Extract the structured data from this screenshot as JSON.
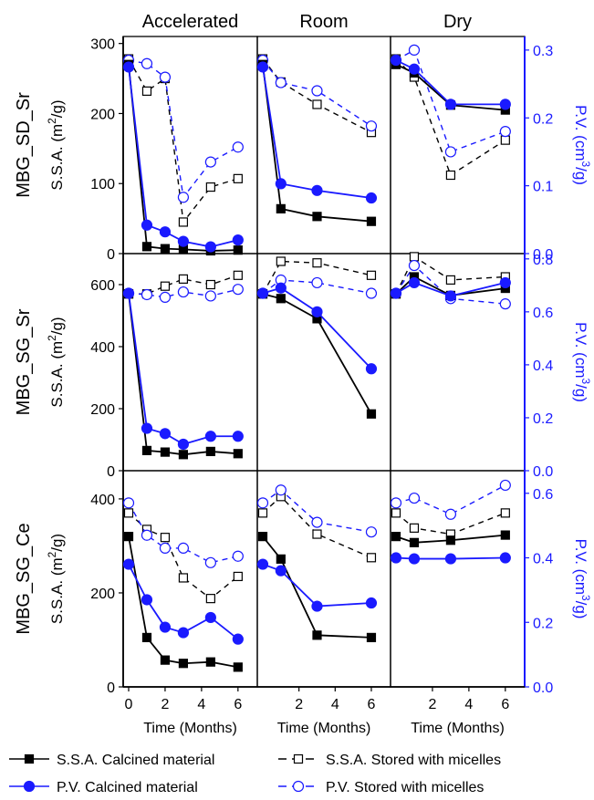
{
  "chart_data": {
    "type": "line",
    "column_titles": [
      "Accelerated",
      "Room",
      "Dry"
    ],
    "row_labels": [
      "MBG_SD_Sr",
      "MBG_SG_Sr",
      "MBG_SG_Ce"
    ],
    "xlabel": "Time (Months)",
    "ylabel_left": "S.S.A. (m²/g)",
    "ylabel_right": "P.V. (cm³/g)",
    "colors": {
      "ssa": "#000000",
      "pv": "#1a1aff"
    },
    "x_ticks": [
      {
        "col": 0,
        "values": [
          0,
          2,
          4,
          6
        ],
        "labels": [
          "0",
          "2",
          "4",
          "6"
        ]
      },
      {
        "col": 1,
        "values": [
          2,
          4,
          6
        ],
        "labels": [
          "2",
          "4",
          "6"
        ]
      },
      {
        "col": 2,
        "values": [
          2,
          4,
          6
        ],
        "labels": [
          "2",
          "4",
          "6"
        ]
      }
    ],
    "xlim": [
      0,
      7
    ],
    "rows": [
      {
        "label": "MBG_SD_Sr",
        "ylim_left": [
          0,
          310
        ],
        "ylim_right": [
          0,
          0.32
        ],
        "left_ticks": [
          0,
          100,
          200,
          300
        ],
        "left_tick_labels": [
          "0",
          "100",
          "200",
          "300"
        ],
        "right_ticks": [
          0.0,
          0.1,
          0.2,
          0.3
        ],
        "right_tick_labels": [
          "0.0",
          "0.1",
          "0.2",
          "0.3"
        ],
        "panels": [
          {
            "ssa_calcined": {
              "x": [
                0,
                1,
                2,
                3,
                4.5,
                6
              ],
              "y": [
                270,
                10,
                7,
                6,
                4,
                5
              ]
            },
            "ssa_stored": {
              "x": [
                0,
                1,
                2,
                3,
                4.5,
                6
              ],
              "y": [
                278,
                232,
                250,
                45,
                95,
                107
              ]
            },
            "pv_calcined": {
              "x": [
                0,
                1,
                2,
                3,
                4.5,
                6
              ],
              "y": [
                0.275,
                0.042,
                0.032,
                0.018,
                0.01,
                0.02
              ]
            },
            "pv_stored": {
              "x": [
                0,
                1,
                2,
                3,
                4.5,
                6
              ],
              "y": [
                0.285,
                0.28,
                0.26,
                0.083,
                0.135,
                0.157
              ]
            }
          },
          {
            "ssa_calcined": {
              "x": [
                0,
                1,
                3,
                6
              ],
              "y": [
                270,
                64,
                53,
                46
              ]
            },
            "ssa_stored": {
              "x": [
                0,
                1,
                3,
                6
              ],
              "y": [
                278,
                245,
                213,
                173
              ]
            },
            "pv_calcined": {
              "x": [
                0,
                1,
                3,
                6
              ],
              "y": [
                0.275,
                0.103,
                0.093,
                0.082
              ]
            },
            "pv_stored": {
              "x": [
                0,
                1,
                3,
                6
              ],
              "y": [
                0.285,
                0.252,
                0.24,
                0.188
              ]
            }
          },
          {
            "ssa_calcined": {
              "x": [
                0,
                1,
                3,
                6
              ],
              "y": [
                270,
                258,
                212,
                205
              ]
            },
            "ssa_stored": {
              "x": [
                0,
                1,
                3,
                6
              ],
              "y": [
                278,
                252,
                112,
                162
              ]
            },
            "pv_calcined": {
              "x": [
                0,
                1,
                3,
                6
              ],
              "y": [
                0.285,
                0.272,
                0.22,
                0.22
              ]
            },
            "pv_stored": {
              "x": [
                0,
                1,
                3,
                6
              ],
              "y": [
                0.285,
                0.3,
                0.15,
                0.18
              ]
            }
          }
        ]
      },
      {
        "label": "MBG_SG_Sr",
        "ylim_left": [
          0,
          700
        ],
        "ylim_right": [
          0,
          0.82
        ],
        "left_ticks": [
          0,
          200,
          400,
          600
        ],
        "left_tick_labels": [
          "0",
          "200",
          "400",
          "600"
        ],
        "right_ticks": [
          0.0,
          0.2,
          0.4,
          0.6,
          0.8
        ],
        "right_tick_labels": [
          "0.0",
          "0.2",
          "0.4",
          "0.6",
          "0.8"
        ],
        "panels": [
          {
            "ssa_calcined": {
              "x": [
                0,
                1,
                2,
                3,
                4.5,
                6
              ],
              "y": [
                570,
                65,
                60,
                52,
                62,
                55
              ]
            },
            "ssa_stored": {
              "x": [
                0,
                1,
                2,
                3,
                4.5,
                6
              ],
              "y": [
                570,
                570,
                595,
                618,
                600,
                630
              ]
            },
            "pv_calcined": {
              "x": [
                0,
                1,
                2,
                3,
                4.5,
                6
              ],
              "y": [
                0.67,
                0.16,
                0.14,
                0.1,
                0.13,
                0.13
              ]
            },
            "pv_stored": {
              "x": [
                0,
                1,
                2,
                3,
                4.5,
                6
              ],
              "y": [
                0.67,
                0.665,
                0.655,
                0.675,
                0.66,
                0.685
              ]
            }
          },
          {
            "ssa_calcined": {
              "x": [
                0,
                1,
                3,
                6
              ],
              "y": [
                570,
                555,
                490,
                183
              ]
            },
            "ssa_stored": {
              "x": [
                0,
                1,
                3,
                6
              ],
              "y": [
                570,
                675,
                670,
                630
              ]
            },
            "pv_calcined": {
              "x": [
                0,
                1,
                3,
                6
              ],
              "y": [
                0.67,
                0.69,
                0.6,
                0.385
              ]
            },
            "pv_stored": {
              "x": [
                0,
                1,
                3,
                6
              ],
              "y": [
                0.67,
                0.72,
                0.71,
                0.67
              ]
            }
          },
          {
            "ssa_calcined": {
              "x": [
                0,
                1,
                3,
                6
              ],
              "y": [
                570,
                625,
                565,
                588
              ]
            },
            "ssa_stored": {
              "x": [
                0,
                1,
                3,
                6
              ],
              "y": [
                570,
                690,
                615,
                625
              ]
            },
            "pv_calcined": {
              "x": [
                0,
                1,
                3,
                6
              ],
              "y": [
                0.67,
                0.71,
                0.66,
                0.71
              ]
            },
            "pv_stored": {
              "x": [
                0,
                1,
                3,
                6
              ],
              "y": [
                0.67,
                0.775,
                0.65,
                0.63
              ]
            }
          }
        ]
      },
      {
        "label": "MBG_SG_Ce",
        "ylim_left": [
          0,
          460
        ],
        "ylim_right": [
          0,
          0.67
        ],
        "left_ticks": [
          0,
          200,
          400
        ],
        "left_tick_labels": [
          "0",
          "200",
          "400"
        ],
        "right_ticks": [
          0.0,
          0.2,
          0.4,
          0.6
        ],
        "right_tick_labels": [
          "0.0",
          "0.2",
          "0.4",
          "0.6"
        ],
        "panels": [
          {
            "ssa_calcined": {
              "x": [
                0,
                1,
                2,
                3,
                4.5,
                6
              ],
              "y": [
                320,
                105,
                57,
                50,
                53,
                42
              ]
            },
            "ssa_stored": {
              "x": [
                0,
                1,
                2,
                3,
                4.5,
                6
              ],
              "y": [
                370,
                335,
                318,
                232,
                188,
                235
              ]
            },
            "pv_calcined": {
              "x": [
                0,
                1,
                2,
                3,
                4.5,
                6
              ],
              "y": [
                0.38,
                0.27,
                0.185,
                0.168,
                0.215,
                0.148
              ]
            },
            "pv_stored": {
              "x": [
                0,
                1,
                2,
                3,
                4.5,
                6
              ],
              "y": [
                0.57,
                0.47,
                0.43,
                0.43,
                0.385,
                0.405
              ]
            }
          },
          {
            "ssa_calcined": {
              "x": [
                0,
                1,
                3,
                6
              ],
              "y": [
                320,
                272,
                110,
                105
              ]
            },
            "ssa_stored": {
              "x": [
                0,
                1,
                3,
                6
              ],
              "y": [
                370,
                405,
                325,
                275
              ]
            },
            "pv_calcined": {
              "x": [
                0,
                1,
                3,
                6
              ],
              "y": [
                0.38,
                0.36,
                0.25,
                0.26
              ]
            },
            "pv_stored": {
              "x": [
                0,
                1,
                3,
                6
              ],
              "y": [
                0.57,
                0.61,
                0.51,
                0.48
              ]
            }
          },
          {
            "ssa_calcined": {
              "x": [
                0,
                1,
                3,
                6
              ],
              "y": [
                320,
                307,
                312,
                323
              ]
            },
            "ssa_stored": {
              "x": [
                0,
                1,
                3,
                6
              ],
              "y": [
                370,
                338,
                325,
                370
              ]
            },
            "pv_calcined": {
              "x": [
                0,
                1,
                3,
                6
              ],
              "y": [
                0.4,
                0.397,
                0.397,
                0.4
              ]
            },
            "pv_stored": {
              "x": [
                0,
                1,
                3,
                6
              ],
              "y": [
                0.57,
                0.585,
                0.535,
                0.625
              ]
            }
          }
        ]
      }
    ],
    "legend": [
      {
        "key": "ssa_calcined",
        "label": "S.S.A. Calcined material",
        "color": "#000000",
        "dashed": false,
        "filled": true,
        "marker": "square"
      },
      {
        "key": "ssa_stored",
        "label": "S.S.A. Stored with micelles",
        "color": "#000000",
        "dashed": true,
        "filled": false,
        "marker": "square"
      },
      {
        "key": "pv_calcined",
        "label": "P.V. Calcined material",
        "color": "#1a1aff",
        "dashed": false,
        "filled": true,
        "marker": "circle"
      },
      {
        "key": "pv_stored",
        "label": "P.V. Stored with micelles",
        "color": "#1a1aff",
        "dashed": true,
        "filled": false,
        "marker": "circle"
      }
    ],
    "legend_position": "bottom"
  }
}
